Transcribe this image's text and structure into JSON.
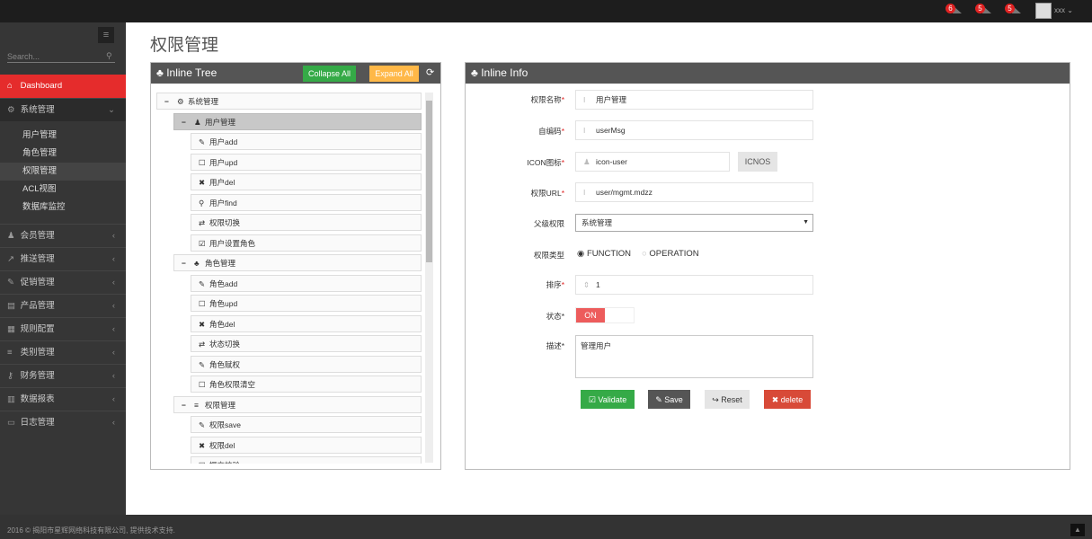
{
  "topbar": {
    "notifications": [
      {
        "count": "6",
        "icon": "bell-icon"
      },
      {
        "count": "5",
        "icon": "envelope-icon"
      },
      {
        "count": "5",
        "icon": "tasks-icon"
      }
    ],
    "user": "xxx"
  },
  "sidebar": {
    "search_placeholder": "Search...",
    "items": [
      {
        "label": "Dashboard",
        "icon": "home-icon",
        "glyph": "⌂",
        "active": true
      },
      {
        "label": "系统管理",
        "icon": "cogs-icon",
        "glyph": "⚙",
        "open": true,
        "children": [
          "用户管理",
          "角色管理",
          "权限管理",
          "ACL视图",
          "数据库监控"
        ],
        "current": "权限管理"
      },
      {
        "label": "会员管理",
        "icon": "user-icon",
        "glyph": "♟"
      },
      {
        "label": "推送管理",
        "icon": "share-icon",
        "glyph": "↗"
      },
      {
        "label": "促销管理",
        "icon": "pencil-icon",
        "glyph": "✎"
      },
      {
        "label": "产品管理",
        "icon": "book-icon",
        "glyph": "▤"
      },
      {
        "label": "规则配置",
        "icon": "list-alt-icon",
        "glyph": "▦"
      },
      {
        "label": "类别管理",
        "icon": "reorder-icon",
        "glyph": "≡"
      },
      {
        "label": "财务管理",
        "icon": "key-icon",
        "glyph": "⚷"
      },
      {
        "label": "数据报表",
        "icon": "bar-chart-icon",
        "glyph": "▥"
      },
      {
        "label": "日志管理",
        "icon": "credit-card-icon",
        "glyph": "▭"
      }
    ]
  },
  "page_title": "权限管理",
  "tree_panel": {
    "title": "Inline Tree",
    "collapse_all": "Collapse All",
    "expand_all": "Expand All",
    "nodes": [
      {
        "level": 0,
        "label": "系统管理",
        "icon": "cogs-icon",
        "glyph": "⚙",
        "toggle": "−"
      },
      {
        "level": 1,
        "label": "用户管理",
        "icon": "user-icon",
        "glyph": "♟",
        "toggle": "−",
        "selected": true
      },
      {
        "level": 2,
        "label": "用户add",
        "icon": "pencil-icon",
        "glyph": "✎"
      },
      {
        "level": 2,
        "label": "用户upd",
        "icon": "edit-icon",
        "glyph": "☐"
      },
      {
        "level": 2,
        "label": "用户del",
        "icon": "remove-icon",
        "glyph": "✖"
      },
      {
        "level": 2,
        "label": "用户find",
        "icon": "search-icon",
        "glyph": "⚲"
      },
      {
        "level": 2,
        "label": "权限切换",
        "icon": "retweet-icon",
        "glyph": "⇄"
      },
      {
        "level": 2,
        "label": "用户设置角色",
        "icon": "check-icon",
        "glyph": "☑"
      },
      {
        "level": 1,
        "label": "角色管理",
        "icon": "sitemap-icon",
        "glyph": "♣",
        "toggle": "−"
      },
      {
        "level": 2,
        "label": "角色add",
        "icon": "pencil-icon",
        "glyph": "✎"
      },
      {
        "level": 2,
        "label": "角色upd",
        "icon": "edit-icon",
        "glyph": "☐"
      },
      {
        "level": 2,
        "label": "角色del",
        "icon": "remove-icon",
        "glyph": "✖"
      },
      {
        "level": 2,
        "label": "状态切换",
        "icon": "retweet-icon",
        "glyph": "⇄"
      },
      {
        "level": 2,
        "label": "角色赋权",
        "icon": "pencil-icon",
        "glyph": "✎"
      },
      {
        "level": 2,
        "label": "角色权限清空",
        "icon": "checkbox-empty-icon",
        "glyph": "☐"
      },
      {
        "level": 1,
        "label": "权限管理",
        "icon": "reorder-icon",
        "glyph": "≡",
        "toggle": "−"
      },
      {
        "level": 2,
        "label": "权限save",
        "icon": "pencil-icon",
        "glyph": "✎"
      },
      {
        "level": 2,
        "label": "权限del",
        "icon": "remove-icon",
        "glyph": "✖"
      },
      {
        "level": 2,
        "label": "提交校验",
        "icon": "edit-icon",
        "glyph": "☐"
      }
    ]
  },
  "info_panel": {
    "title": "Inline Info",
    "name_label": "权限名称",
    "name_value": "用户管理",
    "code_label": "自编码",
    "code_value": "userMsg",
    "icon_label": "ICON图标",
    "icon_value": "icon-user",
    "icons_button": "ICNOS",
    "url_label": "权限URL",
    "url_value": "user/mgmt.mdzz",
    "parent_label": "父级权限",
    "parent_value": "系统管理",
    "type_label": "权限类型",
    "type_options": [
      "FUNCTION",
      "OPERATION"
    ],
    "type_selected": "FUNCTION",
    "order_label": "排序",
    "order_value": "1",
    "status_label": "状态*",
    "status_value": "ON",
    "desc_label": "描述*",
    "desc_value": "管理用户",
    "validate": "Validate",
    "save": "Save",
    "reset": "Reset",
    "delete": "delete"
  },
  "colors": {
    "accent": "#e52c2c",
    "green": "#35aa47",
    "orange": "#ffb848",
    "red": "#d84a38"
  },
  "footer": "2016 © 揭阳市星辉网络科技有限公司, 提供技术支持."
}
